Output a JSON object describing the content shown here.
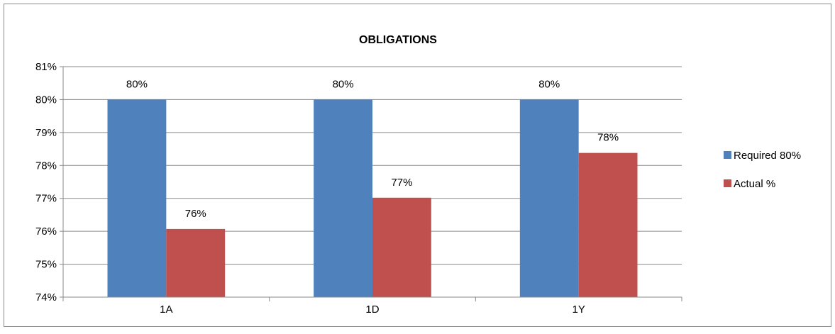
{
  "chart_data": {
    "type": "bar",
    "title": "OBLIGATIONS",
    "categories": [
      "1A",
      "1D",
      "1Y"
    ],
    "series": [
      {
        "name": "Required 80%",
        "color": "#4F81BD",
        "values": [
          0.8,
          0.8,
          0.8
        ],
        "labels": [
          "80%",
          "80%",
          "80%"
        ]
      },
      {
        "name": "Actual %",
        "color": "#C0504D",
        "values": [
          0.7607,
          0.7702,
          0.7838
        ],
        "labels": [
          "76%",
          "77%",
          "78%"
        ]
      }
    ],
    "ylim": [
      0.74,
      0.81
    ],
    "yticks": [
      {
        "value": 0.81,
        "label": "81%"
      },
      {
        "value": 0.8,
        "label": "80%"
      },
      {
        "value": 0.79,
        "label": "79%"
      },
      {
        "value": 0.78,
        "label": "78%"
      },
      {
        "value": 0.77,
        "label": "77%"
      },
      {
        "value": 0.76,
        "label": "76%"
      },
      {
        "value": 0.75,
        "label": "75%"
      },
      {
        "value": 0.74,
        "label": "74%"
      }
    ],
    "xlabel": "",
    "ylabel": "",
    "grid": true,
    "legend_position": "right"
  }
}
